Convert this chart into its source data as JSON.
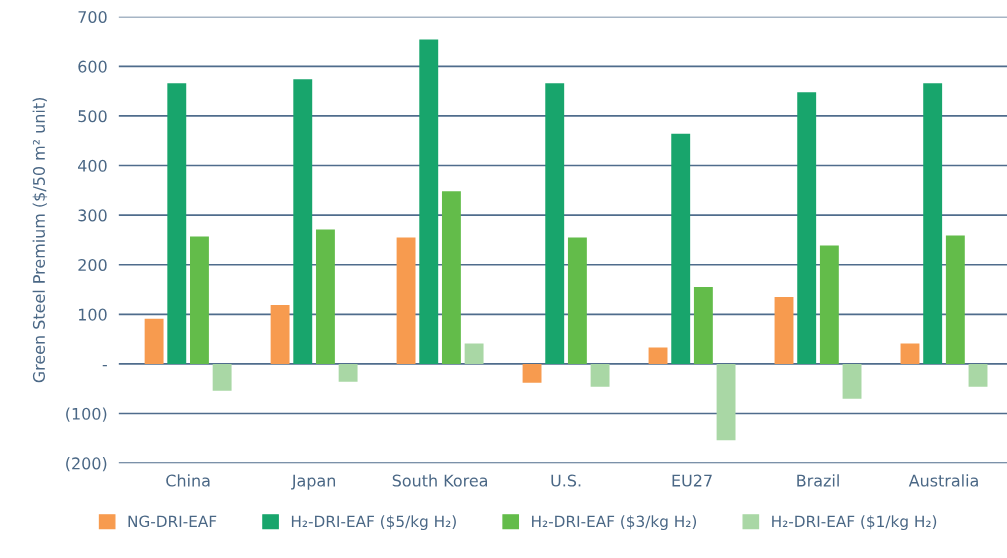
{
  "chart_data": {
    "type": "bar",
    "ylabel": "Green Steel Premium ($/50 m² unit)",
    "categories": [
      "China",
      "Japan",
      "South Korea",
      "U.S.",
      "EU27",
      "Brazil",
      "Australia"
    ],
    "series": [
      {
        "name": "NG-DRI-EAF",
        "color": "#f79b4f",
        "values": [
          91,
          119,
          255,
          -38,
          33,
          135,
          41
        ]
      },
      {
        "name": "H₂-DRI-EAF ($5/kg H₂)",
        "color": "#18a56c",
        "values": [
          566,
          574,
          654,
          566,
          464,
          548,
          566
        ]
      },
      {
        "name": "H₂-DRI-EAF ($3/kg H₂)",
        "color": "#63bc4a",
        "values": [
          257,
          271,
          348,
          255,
          155,
          239,
          259
        ]
      },
      {
        "name": "H₂-DRI-EAF ($1/kg H₂)",
        "color": "#a9d7a5",
        "values": [
          -54,
          -36,
          41,
          -46,
          -154,
          -70,
          -46
        ]
      }
    ],
    "ylim": [
      -200,
      700
    ],
    "yticks": [
      {
        "value": -200,
        "label": "(200)"
      },
      {
        "value": -100,
        "label": "(100)"
      },
      {
        "value": 0,
        "label": "-"
      },
      100,
      200,
      300,
      400,
      500,
      600,
      700
    ],
    "grid": "y",
    "legend": "bottom"
  }
}
